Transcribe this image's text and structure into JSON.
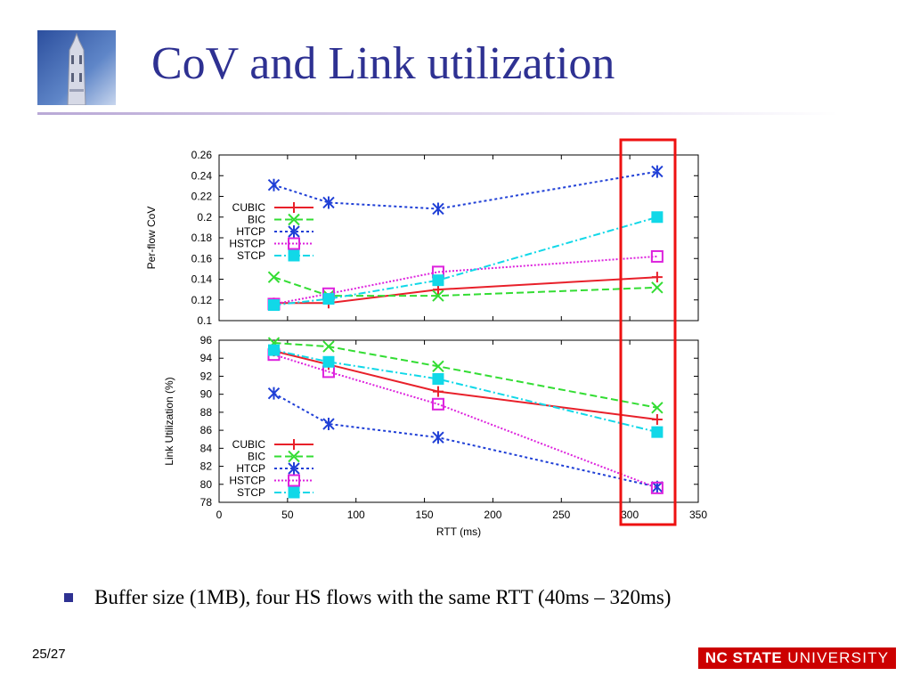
{
  "slide": {
    "title": "CoV and Link utilization",
    "bullet": "Buffer size (1MB), four HS flows with the same RTT (40ms – 320ms)",
    "page_number": "25/27",
    "footer_logo_bold": "NC STATE",
    "footer_logo_light": "UNIVERSITY"
  },
  "colors": {
    "title": "#2e3192",
    "footer_bg": "#cc0000",
    "highlight": "#ee1111"
  },
  "chart_data": [
    {
      "type": "line",
      "title": "",
      "xlabel": "",
      "ylabel": "Per-flow CoV",
      "x": [
        40,
        80,
        160,
        320
      ],
      "xlim": [
        0,
        350
      ],
      "ylim": [
        0.1,
        0.26
      ],
      "yticks": [
        0.1,
        0.12,
        0.14,
        0.16,
        0.18,
        0.2,
        0.22,
        0.24,
        0.26
      ],
      "ytick_labels": [
        "0.1",
        "0.12",
        "0.14",
        "0.16",
        "0.18",
        "0.2",
        "0.22",
        "0.24",
        "0.26"
      ],
      "legend": "left",
      "series": [
        {
          "name": "CUBIC",
          "color": "#e8202a",
          "marker": "plus",
          "dash": "",
          "values": [
            0.117,
            0.117,
            0.13,
            0.142
          ]
        },
        {
          "name": "BIC",
          "color": "#33dd33",
          "marker": "x",
          "dash": "8,4",
          "values": [
            0.142,
            0.124,
            0.124,
            0.132
          ]
        },
        {
          "name": "HTCP",
          "color": "#1f3fd6",
          "marker": "star",
          "dash": "3,3",
          "values": [
            0.231,
            0.214,
            0.208,
            0.244
          ]
        },
        {
          "name": "HSTCP",
          "color": "#dd22dd",
          "marker": "square",
          "dash": "2,2",
          "values": [
            0.116,
            0.126,
            0.147,
            0.162
          ]
        },
        {
          "name": "STCP",
          "color": "#11d8e8",
          "marker": "filled-square",
          "dash": "8,3,2,3",
          "values": [
            0.115,
            0.121,
            0.139,
            0.2
          ]
        }
      ]
    },
    {
      "type": "line",
      "title": "",
      "xlabel": "RTT (ms)",
      "ylabel": "Link Utilization (%)",
      "x": [
        40,
        80,
        160,
        320
      ],
      "xlim": [
        0,
        350
      ],
      "ylim": [
        78,
        96
      ],
      "xticks": [
        0,
        50,
        100,
        150,
        200,
        250,
        300,
        350
      ],
      "xtick_labels": [
        "0",
        "50",
        "100",
        "150",
        "200",
        "250",
        "300",
        "350"
      ],
      "yticks": [
        78,
        80,
        82,
        84,
        86,
        88,
        90,
        92,
        94,
        96
      ],
      "ytick_labels": [
        "78",
        "80",
        "82",
        "84",
        "86",
        "88",
        "90",
        "92",
        "94",
        "96"
      ],
      "legend": "bottom-left",
      "series": [
        {
          "name": "CUBIC",
          "color": "#e8202a",
          "marker": "plus",
          "dash": "",
          "values": [
            94.8,
            93.3,
            90.3,
            87.2
          ]
        },
        {
          "name": "BIC",
          "color": "#33dd33",
          "marker": "x",
          "dash": "8,4",
          "values": [
            95.7,
            95.3,
            93.1,
            88.5
          ]
        },
        {
          "name": "HTCP",
          "color": "#1f3fd6",
          "marker": "star",
          "dash": "3,3",
          "values": [
            90.1,
            86.7,
            85.2,
            79.7
          ]
        },
        {
          "name": "HSTCP",
          "color": "#dd22dd",
          "marker": "square",
          "dash": "2,2",
          "values": [
            94.4,
            92.5,
            88.9,
            79.6
          ]
        },
        {
          "name": "STCP",
          "color": "#11d8e8",
          "marker": "filled-square",
          "dash": "8,3,2,3",
          "values": [
            94.9,
            93.6,
            91.7,
            85.8
          ]
        }
      ]
    }
  ]
}
